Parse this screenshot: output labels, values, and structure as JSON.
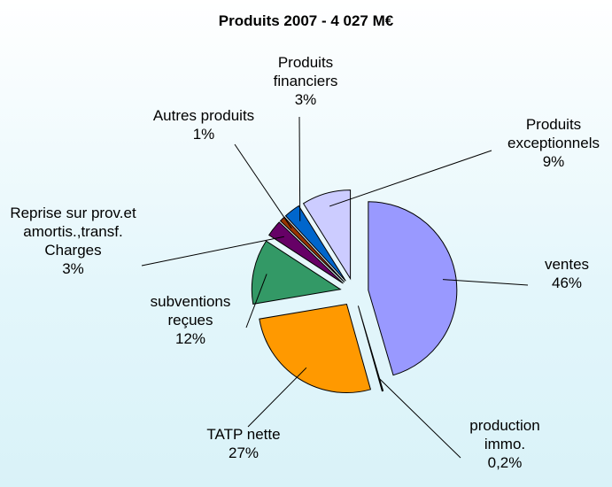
{
  "chart_data": {
    "type": "pie",
    "title": "Produits 2007 - 4 027 M€",
    "categories": [
      "ventes",
      "production immo.",
      "TATP nette",
      "subventions reçues",
      "Reprise sur prov.et amortis.,transf. Charges",
      "Autres produits",
      "Produits financiers",
      "Produits exceptionnels"
    ],
    "values": [
      46,
      0.2,
      27,
      12,
      3,
      1,
      3,
      9
    ],
    "value_labels": [
      "46%",
      "0,2%",
      "27%",
      "12%",
      "3%",
      "1%",
      "3%",
      "9%"
    ],
    "colors": [
      "#9999ff",
      "#1a1a1a",
      "#ff9900",
      "#339966",
      "#660066",
      "#993300",
      "#0066cc",
      "#ccccff"
    ]
  }
}
